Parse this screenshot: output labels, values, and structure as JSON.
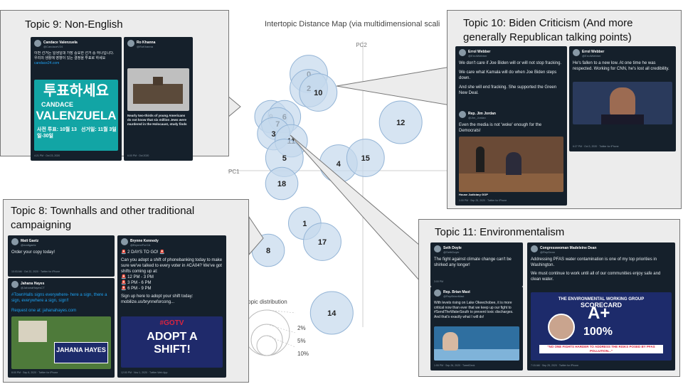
{
  "chart_data": {
    "type": "scatter",
    "title": "Intertopic Distance Map (via multidimensional scali",
    "xlabel": "PC1",
    "ylabel": "PC2",
    "xlim": [
      -10,
      10
    ],
    "ylim": [
      -10,
      10
    ],
    "topics": [
      {
        "label": "0",
        "x": -4.0,
        "y": 6.8,
        "size": 4
      },
      {
        "label": "2",
        "x": -4.0,
        "y": 5.8,
        "size": 4
      },
      {
        "label": "10",
        "x": -3.3,
        "y": 5.5,
        "size": 4
      },
      {
        "label": "9",
        "x": -6.8,
        "y": 3.8,
        "size": 3
      },
      {
        "label": "6",
        "x": -5.8,
        "y": 3.8,
        "size": 3
      },
      {
        "label": "7",
        "x": -6.3,
        "y": 3.3,
        "size": 3
      },
      {
        "label": "3",
        "x": -6.6,
        "y": 2.6,
        "size": 3
      },
      {
        "label": "11",
        "x": -5.3,
        "y": 2.1,
        "size": 3
      },
      {
        "label": "5",
        "x": -5.8,
        "y": 0.9,
        "size": 4
      },
      {
        "label": "18",
        "x": -6.0,
        "y": -0.9,
        "size": 3
      },
      {
        "label": "4",
        "x": -1.8,
        "y": 0.5,
        "size": 4
      },
      {
        "label": "15",
        "x": 0.2,
        "y": 0.9,
        "size": 4
      },
      {
        "label": "12",
        "x": 2.8,
        "y": 3.4,
        "size": 5
      },
      {
        "label": "1",
        "x": -4.3,
        "y": -3.7,
        "size": 3
      },
      {
        "label": "17",
        "x": -3.0,
        "y": -5.0,
        "size": 4
      },
      {
        "label": "8",
        "x": -7.0,
        "y": -5.6,
        "size": 3
      },
      {
        "label": "14",
        "x": -2.3,
        "y": -10.0,
        "size": 5
      }
    ],
    "size_legend": {
      "title": "nal topic distribution",
      "entries": [
        "2%",
        "5%",
        "10%"
      ]
    }
  },
  "callouts": {
    "topic9": {
      "title": "Topic 9: Non-English"
    },
    "topic10": {
      "title": "Topic 10: Biden Criticism (And more generally Republican talking points)"
    },
    "topic8": {
      "title": "Topic 8: Townhalls and other traditional campaigning"
    },
    "topic11": {
      "title": "Topic 11: Environmentalism"
    }
  },
  "tweets": {
    "t9a": {
      "name": "Candace Valenzuela",
      "handle": "@CandaceV24",
      "body": "이번 선거는 일생일대 가장 중요한 선거 중 하나입니다. 우리의 생활에 영향이 있는 결정을 투표로 하세요",
      "link": "candace24.com",
      "poster_line1": "투표하세요",
      "poster_line2": "CANDACE",
      "poster_line3": "VALENZUELA",
      "poster_line4": "사전 투표: 10월 13일-30일",
      "poster_line5": "선거일: 11월 3일",
      "foot": "4:21 PM · Oct 23, 2020"
    },
    "t9b": {
      "name": "Ro Khanna",
      "handle": "@RoKhanna",
      "body": "Nearly two-thirds of young Americans do not know that six million Jews were murdered in the Holocaust, study finds",
      "foot": "6:00 PM · Oct 2020"
    },
    "t10a": {
      "name": "Errol Webber",
      "handle": "@ErrolWebber",
      "body1": "We don't care if Joe Biden will or will not stop fracking.",
      "body2": "We care what Kamala will do when Joe Biden steps down.",
      "body3": "And she will end fracking. She supported the Green New Deal.",
      "foot": "8:26 PM · Oct 7, 2020 · Twitter Web App"
    },
    "t10b": {
      "name": "Rep. Jim Jordan",
      "handle": "@Jim_Jordan",
      "body": "Even the media is not 'woke' enough for the Democrats!",
      "source": "House Judiciary GOP",
      "foot": "1:00 PM · Sep 25, 2020 · Twitter for iPhone"
    },
    "t10c": {
      "name": "Errol Webber",
      "handle": "@ErrolWebber",
      "body": "He's fallen to a new low. At one time he was respected. Working for CNN, he's lost all credibility.",
      "foot": "6:27 PM · Oct 3, 2020 · Twitter for iPhone"
    },
    "t8a": {
      "name": "Matt Gaetz",
      "handle": "@mattgaetz",
      "body": "Order your copy today!",
      "foot": "10:03 AM · Oct 22, 2020 · Twitter for iPhone"
    },
    "t8b": {
      "name": "Jahana Hayes",
      "handle": "@JahanaHayesCT",
      "body": "#TownHalls signs everywhere- here a sign, there a sign, everywhere a sign, sign!!",
      "request": "Request one at: jahanahayes.com",
      "sign": "JAHANA HAYES",
      "foot": "8:00 PM · Sep 8, 2020 · Twitter for iPhone"
    },
    "t8c": {
      "name": "Brynne Kennedy",
      "handle": "@BrynneForCA",
      "body1": "🚨 2 DAYS TO GO! 🚨",
      "body2": "Can you adopt a shift of phonebanking today to make sure we've talked to every voter in #CA04? We've got shifts coming up at:",
      "shift1": "🚨 12 PM - 3 PM",
      "shift2": "🚨 3 PM - 6 PM",
      "shift3": "🚨 6 PM - 9 PM",
      "body3": "Sign up here to adopt your shift today: mobilize.us/brynneforcong...",
      "poster1": "#GOTV",
      "poster2": "ADOPT A SHIFT!",
      "foot": "12:00 PM · Nov 1, 2020 · Twitter Web App"
    },
    "t11a": {
      "name": "Seth Doyle",
      "handle": "@SethDoyle",
      "body": "The fight against climate change can't be shirked any longer!",
      "foot": "3:00 PM"
    },
    "t11b": {
      "name": "Rep. Brian Mast",
      "handle": "@RepBrianMast",
      "body": "With levels rising on Lake Okeechobee, it is more critical now than ever that we keep up our fight to #SendTheWaterSouth to prevent toxic discharges. And that's exactly what I will do!",
      "foot": "1:55 PM · Sep 26, 2020 · TweetDeck"
    },
    "t11c": {
      "name": "Congresswoman Madeleine Dean",
      "handle": "@RepDean",
      "body1": "Addressing PFAS water contamination is one of my top priorities in Washington.",
      "body2": "We must continue to work until all of our communities enjoy safe and clean water.",
      "card1": "THE ENVIRONMENTAL WORKING GROUP",
      "card2": "SCORECARD",
      "card3": "A+",
      "card4": "100%",
      "card5": "\"NO ONE FIGHTS HARDER TO ADDRESS THE RISKS POSED BY PFAS POLLUTION...\"",
      "foot": "7:15 AM · Sep 25, 2020 · Twitter for iPhone"
    }
  },
  "colors": {
    "bubble_fill": "#c5d9ec",
    "bubble_stroke": "#93b4d6",
    "callout_bg": "#ececec",
    "tweet_bg": "#15202b",
    "link": "#1da1f2",
    "gotv_red": "#d9243f",
    "navy": "#1d2b6b"
  }
}
